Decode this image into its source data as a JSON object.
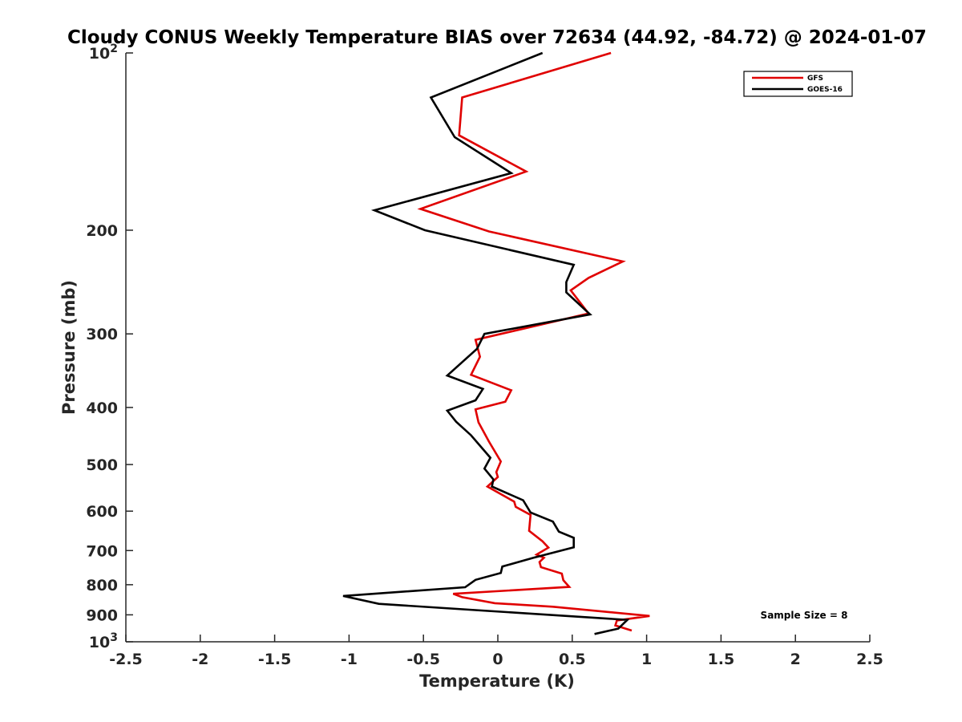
{
  "chart_data": {
    "type": "line",
    "title": "Cloudy CONUS Weekly Temperature BIAS over 72634 (44.92, -84.72) @ 2024-01-07",
    "xlabel": "Temperature (K)",
    "ylabel": "Pressure (mb)",
    "xlim": [
      -2.5,
      2.5
    ],
    "ylim": [
      100,
      1000
    ],
    "y_scale": "log",
    "y_reversed": true,
    "grid": false,
    "legend_position": "top-right",
    "x_ticks": [
      "-2.5",
      "-2",
      "-1.5",
      "-1",
      "-0.5",
      "0",
      "0.5",
      "1",
      "1.5",
      "2",
      "2.5"
    ],
    "y_ticks": [
      {
        "value": 100,
        "base": "10",
        "exp": "2"
      },
      {
        "value": 200,
        "label": "200"
      },
      {
        "value": 300,
        "label": "300"
      },
      {
        "value": 400,
        "label": "400"
      },
      {
        "value": 500,
        "label": "500"
      },
      {
        "value": 600,
        "label": "600"
      },
      {
        "value": 700,
        "label": "700"
      },
      {
        "value": 800,
        "label": "800"
      },
      {
        "value": 900,
        "label": "900"
      },
      {
        "value": 1000,
        "base": "10",
        "exp": "3"
      }
    ],
    "annotation": "Sample Size = 8",
    "series": [
      {
        "name": "GFS",
        "color": "#e00000",
        "points": [
          [
            0.76,
            100
          ],
          [
            -0.24,
            119
          ],
          [
            -0.26,
            138
          ],
          [
            0.19,
            159
          ],
          [
            -0.52,
            184
          ],
          [
            -0.06,
            201
          ],
          [
            0.84,
            226
          ],
          [
            0.61,
            241
          ],
          [
            0.49,
            253
          ],
          [
            0.61,
            277
          ],
          [
            -0.15,
            307
          ],
          [
            -0.12,
            328
          ],
          [
            -0.18,
            352
          ],
          [
            0.09,
            374
          ],
          [
            0.05,
            391
          ],
          [
            -0.15,
            403
          ],
          [
            -0.13,
            424
          ],
          [
            -0.06,
            457
          ],
          [
            0.02,
            494
          ],
          [
            -0.01,
            515
          ],
          [
            0.0,
            525
          ],
          [
            -0.07,
            545
          ],
          [
            0.11,
            578
          ],
          [
            0.12,
            590
          ],
          [
            0.22,
            609
          ],
          [
            0.21,
            648
          ],
          [
            0.3,
            675
          ],
          [
            0.34,
            692
          ],
          [
            0.26,
            711
          ],
          [
            0.31,
            720
          ],
          [
            0.28,
            732
          ],
          [
            0.29,
            747
          ],
          [
            0.43,
            766
          ],
          [
            0.44,
            786
          ],
          [
            0.48,
            807
          ],
          [
            -0.3,
            829
          ],
          [
            -0.24,
            840
          ],
          [
            -0.02,
            860
          ],
          [
            0.37,
            872
          ],
          [
            1.02,
            904
          ],
          [
            0.8,
            920
          ],
          [
            0.79,
            938
          ],
          [
            0.9,
            957
          ]
        ]
      },
      {
        "name": "GOES-16",
        "color": "#000000",
        "points": [
          [
            0.3,
            100
          ],
          [
            -0.45,
            119
          ],
          [
            -0.29,
            139
          ],
          [
            0.09,
            160
          ],
          [
            -0.83,
            185
          ],
          [
            -0.49,
            200
          ],
          [
            0.51,
            229
          ],
          [
            0.46,
            245
          ],
          [
            0.46,
            255
          ],
          [
            0.62,
            278
          ],
          [
            -0.09,
            300
          ],
          [
            -0.14,
            318
          ],
          [
            -0.34,
            353
          ],
          [
            -0.1,
            372
          ],
          [
            -0.15,
            389
          ],
          [
            -0.34,
            405
          ],
          [
            -0.28,
            423
          ],
          [
            -0.18,
            446
          ],
          [
            -0.05,
            487
          ],
          [
            -0.09,
            508
          ],
          [
            -0.03,
            530
          ],
          [
            -0.04,
            545
          ],
          [
            0.17,
            575
          ],
          [
            0.22,
            603
          ],
          [
            0.37,
            625
          ],
          [
            0.41,
            650
          ],
          [
            0.51,
            666
          ],
          [
            0.51,
            691
          ],
          [
            0.24,
            720
          ],
          [
            0.03,
            745
          ],
          [
            0.02,
            764
          ],
          [
            -0.15,
            785
          ],
          [
            -0.22,
            808
          ],
          [
            -1.04,
            836
          ],
          [
            -0.8,
            862
          ],
          [
            0.87,
            918
          ],
          [
            0.81,
            950
          ],
          [
            0.65,
            970
          ]
        ]
      }
    ]
  }
}
